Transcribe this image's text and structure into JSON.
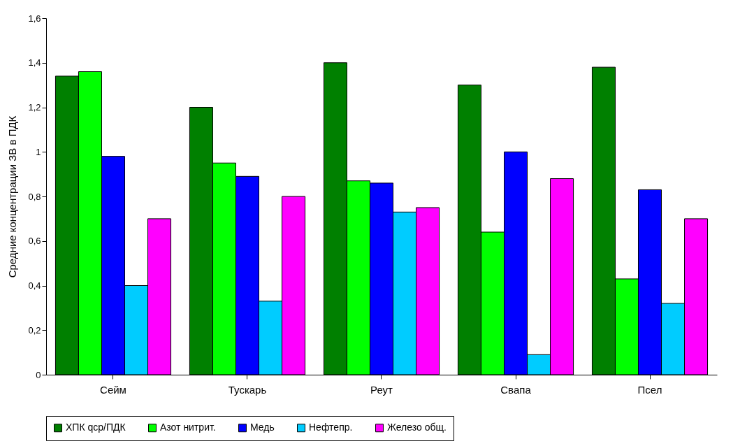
{
  "chart_data": {
    "type": "bar",
    "ylabel": "Средние концентрации ЗВ в ПДК",
    "categories": [
      "Сейм",
      "Тускарь",
      "Реут",
      "Свапа",
      "Псел"
    ],
    "series": [
      {
        "name": "ХПК qср/ПДК",
        "color": "#008000",
        "values": [
          1.34,
          1.2,
          1.4,
          1.3,
          1.38
        ]
      },
      {
        "name": "Азот нитрит.",
        "color": "#00ff00",
        "values": [
          1.36,
          0.95,
          0.87,
          0.64,
          0.43
        ]
      },
      {
        "name": "Медь",
        "color": "#0000ff",
        "values": [
          0.98,
          0.89,
          0.86,
          1.0,
          0.83
        ]
      },
      {
        "name": "Нефтепр.",
        "color": "#00ccff",
        "values": [
          0.4,
          0.33,
          0.73,
          0.09,
          0.32
        ]
      },
      {
        "name": "Железо общ.",
        "color": "#ff00ff",
        "values": [
          0.7,
          0.8,
          0.75,
          0.88,
          0.7
        ]
      }
    ],
    "ylim": [
      0,
      1.6
    ],
    "yticks": [
      0,
      {
        "value": 0.2,
        "label": "0,2"
      },
      {
        "value": 0.4,
        "label": "0,4"
      },
      {
        "value": 0.6,
        "label": "0,6"
      },
      {
        "value": 0.8,
        "label": "0,8"
      },
      1,
      {
        "value": 1.2,
        "label": "1,2"
      },
      {
        "value": 1.4,
        "label": "1,4"
      },
      {
        "value": 1.6,
        "label": "1,6"
      }
    ],
    "grid": false,
    "legend": "bottom"
  }
}
